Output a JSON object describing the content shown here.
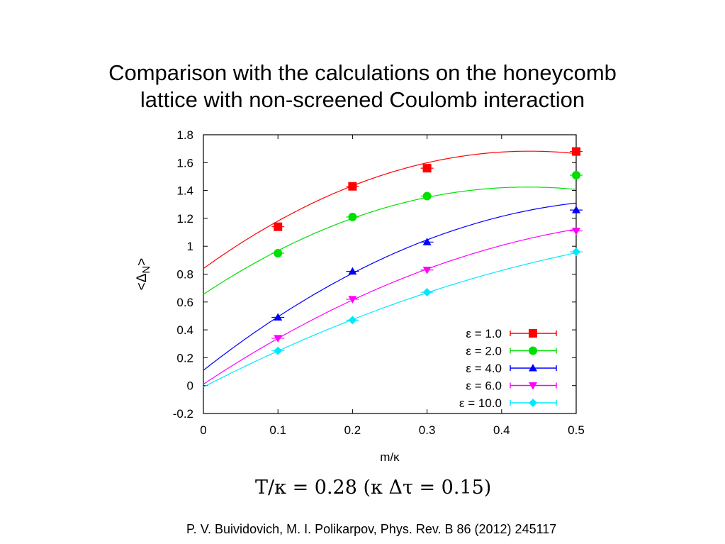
{
  "slide": {
    "title_line1": "Comparison with the calculations on the honeycomb",
    "title_line2": "lattice with non-screened Coulomb interaction",
    "formula": "T/κ = 0.28 (κ Δτ = 0.15)",
    "citation": "P. V. Buividovich, M. I. Polikarpov, Phys. Rev. B 86 (2012) 245117"
  },
  "chart_data": {
    "type": "scatter",
    "xlabel": "m/κ",
    "ylabel": "<ΔN>",
    "xlim": [
      0,
      0.5
    ],
    "ylim": [
      -0.2,
      1.8
    ],
    "x_ticks": [
      "0",
      "0.1",
      "0.2",
      "0.3",
      "0.4",
      "0.5"
    ],
    "y_ticks": [
      "-0.2",
      "0",
      "0.2",
      "0.4",
      "0.6",
      "0.8",
      "1",
      "1.2",
      "1.4",
      "1.6",
      "1.8"
    ],
    "grid": false,
    "legend_position": "bottom-right",
    "series": [
      {
        "name": "ε = 1.0",
        "color": "#ff0000",
        "marker": "square",
        "x": [
          0.1,
          0.2,
          0.3,
          0.5
        ],
        "y": [
          1.14,
          1.43,
          1.56,
          1.68
        ],
        "fit": [
          0.84,
          3.85,
          -4.4
        ]
      },
      {
        "name": "ε = 2.0",
        "color": "#00e000",
        "marker": "circle",
        "x": [
          0.1,
          0.2,
          0.3,
          0.5
        ],
        "y": [
          0.95,
          1.21,
          1.36,
          1.51
        ],
        "fit": [
          0.655,
          3.54,
          -4.07
        ]
      },
      {
        "name": "ε = 4.0",
        "color": "#0000ff",
        "marker": "triangle-up",
        "x": [
          0.1,
          0.2,
          0.3,
          0.5
        ],
        "y": [
          0.49,
          0.82,
          1.03,
          1.26
        ],
        "fit": [
          0.11,
          4.2,
          -3.6
        ]
      },
      {
        "name": "ε = 6.0",
        "color": "#ff00ff",
        "marker": "triangle-down",
        "x": [
          0.1,
          0.2,
          0.3,
          0.5
        ],
        "y": [
          0.34,
          0.62,
          0.83,
          1.11
        ],
        "fit": [
          0.01,
          3.55,
          -2.65
        ]
      },
      {
        "name": "ε = 10.0",
        "color": "#00e8ff",
        "marker": "diamond",
        "x": [
          0.1,
          0.2,
          0.3,
          0.5
        ],
        "y": [
          0.25,
          0.47,
          0.67,
          0.96
        ],
        "fit": [
          -0.01,
          2.75,
          -1.65
        ]
      }
    ]
  }
}
